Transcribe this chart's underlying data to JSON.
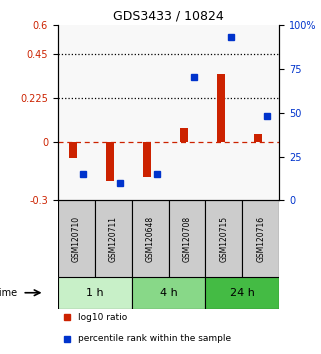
{
  "title": "GDS3433 / 10824",
  "samples": [
    "GSM120710",
    "GSM120711",
    "GSM120648",
    "GSM120708",
    "GSM120715",
    "GSM120716"
  ],
  "log10_ratio": [
    -0.08,
    -0.2,
    -0.18,
    0.07,
    0.35,
    0.04
  ],
  "percentile_rank": [
    15,
    10,
    15,
    70,
    93,
    48
  ],
  "groups": [
    {
      "label": "1 h",
      "indices": [
        0,
        1
      ],
      "color": "#c8f0c8"
    },
    {
      "label": "4 h",
      "indices": [
        2,
        3
      ],
      "color": "#88d888"
    },
    {
      "label": "24 h",
      "indices": [
        4,
        5
      ],
      "color": "#44bb44"
    }
  ],
  "ylim_left": [
    -0.3,
    0.6
  ],
  "ylim_right": [
    0,
    100
  ],
  "yticks_left": [
    -0.3,
    0,
    0.225,
    0.45,
    0.6
  ],
  "ytick_labels_left": [
    "-0.3",
    "0",
    "0.225",
    "0.45",
    "0.6"
  ],
  "yticks_right": [
    0,
    25,
    50,
    75,
    100
  ],
  "ytick_labels_right": [
    "0",
    "25",
    "50",
    "75",
    "100%"
  ],
  "hlines": [
    0.225,
    0.45
  ],
  "bar_color_red": "#cc2200",
  "bar_color_blue": "#0033cc",
  "legend_red": "log10 ratio",
  "legend_blue": "percentile rank within the sample",
  "background_color": "#f8f8f8",
  "sample_box_color": "#cccccc"
}
